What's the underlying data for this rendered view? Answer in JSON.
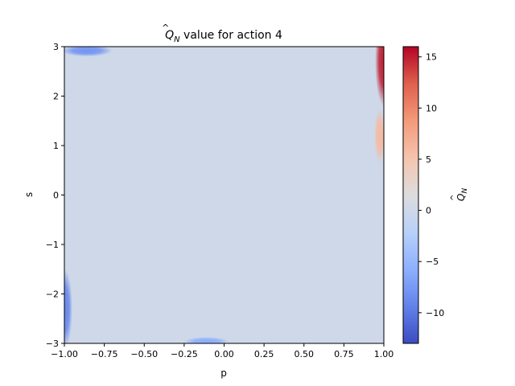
{
  "chart_data": {
    "type": "heatmap",
    "title_main": "Q",
    "title_sub": "N",
    "title_rest": " value for action 4",
    "xlabel": "p",
    "ylabel": "s",
    "xlim": [
      -1.0,
      1.0
    ],
    "ylim": [
      -3,
      3
    ],
    "xticks": [
      -1.0,
      -0.75,
      -0.5,
      -0.25,
      0.0,
      0.25,
      0.5,
      0.75,
      1.0
    ],
    "xtick_labels": [
      "−1.00",
      "−0.75",
      "−0.50",
      "−0.25",
      "0.00",
      "0.25",
      "0.50",
      "0.75",
      "1.00"
    ],
    "yticks": [
      -3,
      -2,
      -1,
      0,
      1,
      2,
      3
    ],
    "ytick_labels": [
      "−3",
      "−2",
      "−1",
      "0",
      "1",
      "2",
      "3"
    ],
    "colormap": "coolwarm",
    "colorbar": {
      "label_main": "Q",
      "label_sub": "N",
      "vmin": -13,
      "vmax": 16,
      "ticks": [
        -10,
        -5,
        0,
        5,
        10,
        15
      ],
      "tick_labels": [
        "−10",
        "−5",
        "0",
        "5",
        "10",
        "15"
      ]
    },
    "background_value": 0,
    "regions": [
      {
        "p_center": -0.86,
        "s_center": 2.92,
        "p_width": 0.16,
        "s_width": 0.12,
        "value": -8
      },
      {
        "p_center": -0.995,
        "s_center": -2.3,
        "p_width": 0.045,
        "s_width": 0.8,
        "value": -9
      },
      {
        "p_center": -0.11,
        "s_center": -2.96,
        "p_width": 0.14,
        "s_width": 0.09,
        "value": -6
      },
      {
        "p_center": 1.0,
        "s_center": 2.7,
        "p_width": 0.055,
        "s_width": 0.9,
        "value": 15
      },
      {
        "p_center": 0.975,
        "s_center": 1.2,
        "p_width": 0.035,
        "s_width": 0.55,
        "value": 6
      }
    ]
  }
}
